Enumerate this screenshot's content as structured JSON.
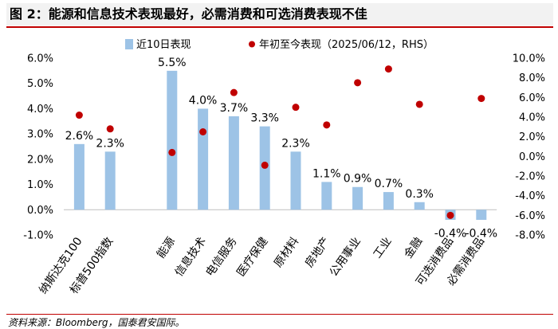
{
  "title": "图 2：能源和信息技术表现最好，必需消费和可选消费表现不佳",
  "source": "资料来源：Bloomberg，国泰君安国际。",
  "colors": {
    "bar": "#9dc3e6",
    "dot": "#c00000",
    "title_bg": "#f2f2f2",
    "rule": "#c00000"
  },
  "chart_data": {
    "type": "bar",
    "categories": [
      "纳斯达克100",
      "标普500指数",
      "",
      "能源",
      "信息技术",
      "电信服务",
      "医疗保健",
      "原材料",
      "房地产",
      "公用事业",
      "工业",
      "金融",
      "可选消费品",
      "必需消费品"
    ],
    "series": [
      {
        "name": "近10日表现",
        "type": "bar",
        "axis": "left",
        "values": [
          2.6,
          2.3,
          null,
          5.5,
          4.0,
          3.7,
          3.3,
          2.3,
          1.1,
          0.9,
          0.7,
          0.3,
          -0.4,
          -0.4
        ],
        "labels": [
          "2.6%",
          "2.3%",
          "",
          "5.5%",
          "4.0%",
          "3.7%",
          "3.3%",
          "2.3%",
          "1.1%",
          "0.9%",
          "0.7%",
          "0.3%",
          "-0.4%",
          "-0.4%"
        ]
      },
      {
        "name": "年初至今表现（2025/06/12，RHS）",
        "type": "scatter",
        "axis": "right",
        "values": [
          4.2,
          2.8,
          null,
          0.4,
          2.5,
          6.5,
          -0.9,
          5.0,
          3.2,
          7.5,
          8.9,
          5.3,
          -6.0,
          5.9
        ]
      }
    ],
    "y_left": {
      "min": -1.0,
      "max": 6.0,
      "ticks": [
        "-1.0%",
        "0.0%",
        "1.0%",
        "2.0%",
        "3.0%",
        "4.0%",
        "5.0%",
        "6.0%"
      ]
    },
    "y_right": {
      "min": -8.0,
      "max": 10.0,
      "ticks": [
        "-8.0%",
        "-6.0%",
        "-4.0%",
        "-2.0%",
        "0.0%",
        "2.0%",
        "4.0%",
        "6.0%",
        "8.0%",
        "10.0%"
      ]
    },
    "legend_position": "top",
    "grid": false
  }
}
